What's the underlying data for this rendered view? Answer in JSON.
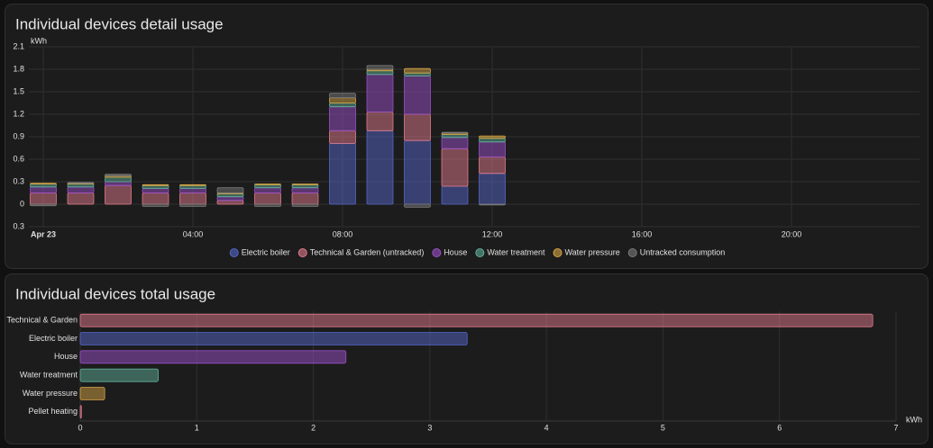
{
  "chart_data": [
    {
      "type": "bar",
      "stacked": true,
      "title": "Individual devices detail usage",
      "y_label": "kWh",
      "categories": [
        "Apr 23",
        null,
        null,
        null,
        "04:00",
        null,
        null,
        null,
        "08:00",
        null,
        null,
        null,
        "12:00",
        null,
        null,
        null,
        "16:00",
        null,
        null,
        null,
        "20:00",
        null,
        null,
        null
      ],
      "series": [
        {
          "name": "Electric boiler",
          "color": "#5566c8",
          "values": [
            0,
            0,
            0,
            0,
            0,
            0,
            0,
            0,
            0.81,
            0.98,
            0.85,
            0.24,
            0.41,
            null,
            null,
            null,
            null,
            null,
            null,
            null,
            null,
            null,
            null,
            null
          ]
        },
        {
          "name": "Technical & Garden (untracked)",
          "color": "#e07a8c",
          "values": [
            0.15,
            0.15,
            0.25,
            0.15,
            0.15,
            0.05,
            0.15,
            0.15,
            0.17,
            0.25,
            0.35,
            0.5,
            0.22,
            null,
            null,
            null,
            null,
            null,
            null,
            null,
            null,
            null,
            null,
            null
          ]
        },
        {
          "name": "House",
          "color": "#9a50c8",
          "values": [
            0.08,
            0.08,
            0.05,
            0.06,
            0.06,
            0.05,
            0.07,
            0.07,
            0.32,
            0.5,
            0.51,
            0.15,
            0.2,
            null,
            null,
            null,
            null,
            null,
            null,
            null,
            null,
            null,
            null,
            null
          ]
        },
        {
          "name": "Water treatment",
          "color": "#5fae98",
          "values": [
            0.04,
            0.04,
            0.06,
            0.04,
            0.04,
            0.04,
            0.04,
            0.04,
            0.05,
            0.05,
            0.04,
            0.04,
            0.05,
            null,
            null,
            null,
            null,
            null,
            null,
            null,
            null,
            null,
            null,
            null
          ]
        },
        {
          "name": "Water pressure",
          "color": "#d6a445",
          "values": [
            0.01,
            0.01,
            0.02,
            0.01,
            0.01,
            0.01,
            0.01,
            0.01,
            0.07,
            0.02,
            0.06,
            0.02,
            0.03,
            null,
            null,
            null,
            null,
            null,
            null,
            null,
            null,
            null,
            null,
            null
          ]
        },
        {
          "name": "Untracked consumption",
          "color": "#7a7a7a",
          "values": [
            -0.02,
            0.01,
            0.02,
            -0.03,
            -0.03,
            0.07,
            -0.03,
            -0.03,
            0.06,
            0.05,
            -0.04,
            0.01,
            -0.01,
            null,
            null,
            null,
            null,
            null,
            null,
            null,
            null,
            null,
            null,
            null
          ]
        }
      ],
      "ylim": [
        -0.3,
        2.1
      ],
      "yticks": [
        {
          "value": -0.3,
          "label": "0.3"
        },
        0,
        0.3,
        0.6,
        0.9,
        1.2,
        1.5,
        1.8,
        2.1
      ],
      "grid": true,
      "legend": "bottom"
    },
    {
      "type": "barh",
      "title": "Individual devices total usage",
      "x_label": "kWh",
      "categories": [
        "Technical & Garden",
        "Electric boiler",
        "House",
        "Water treatment",
        "Water pressure",
        "Pellet heating"
      ],
      "values": [
        6.8,
        3.32,
        2.28,
        0.67,
        0.21,
        0.01
      ],
      "colors": [
        "#e07a8c",
        "#5566c8",
        "#9a50c8",
        "#5fae98",
        "#d6a445",
        "#e07a8c"
      ],
      "xlim": [
        0,
        7
      ],
      "xticks": [
        0,
        1,
        2,
        3,
        4,
        5,
        6,
        7
      ],
      "grid": true
    }
  ]
}
